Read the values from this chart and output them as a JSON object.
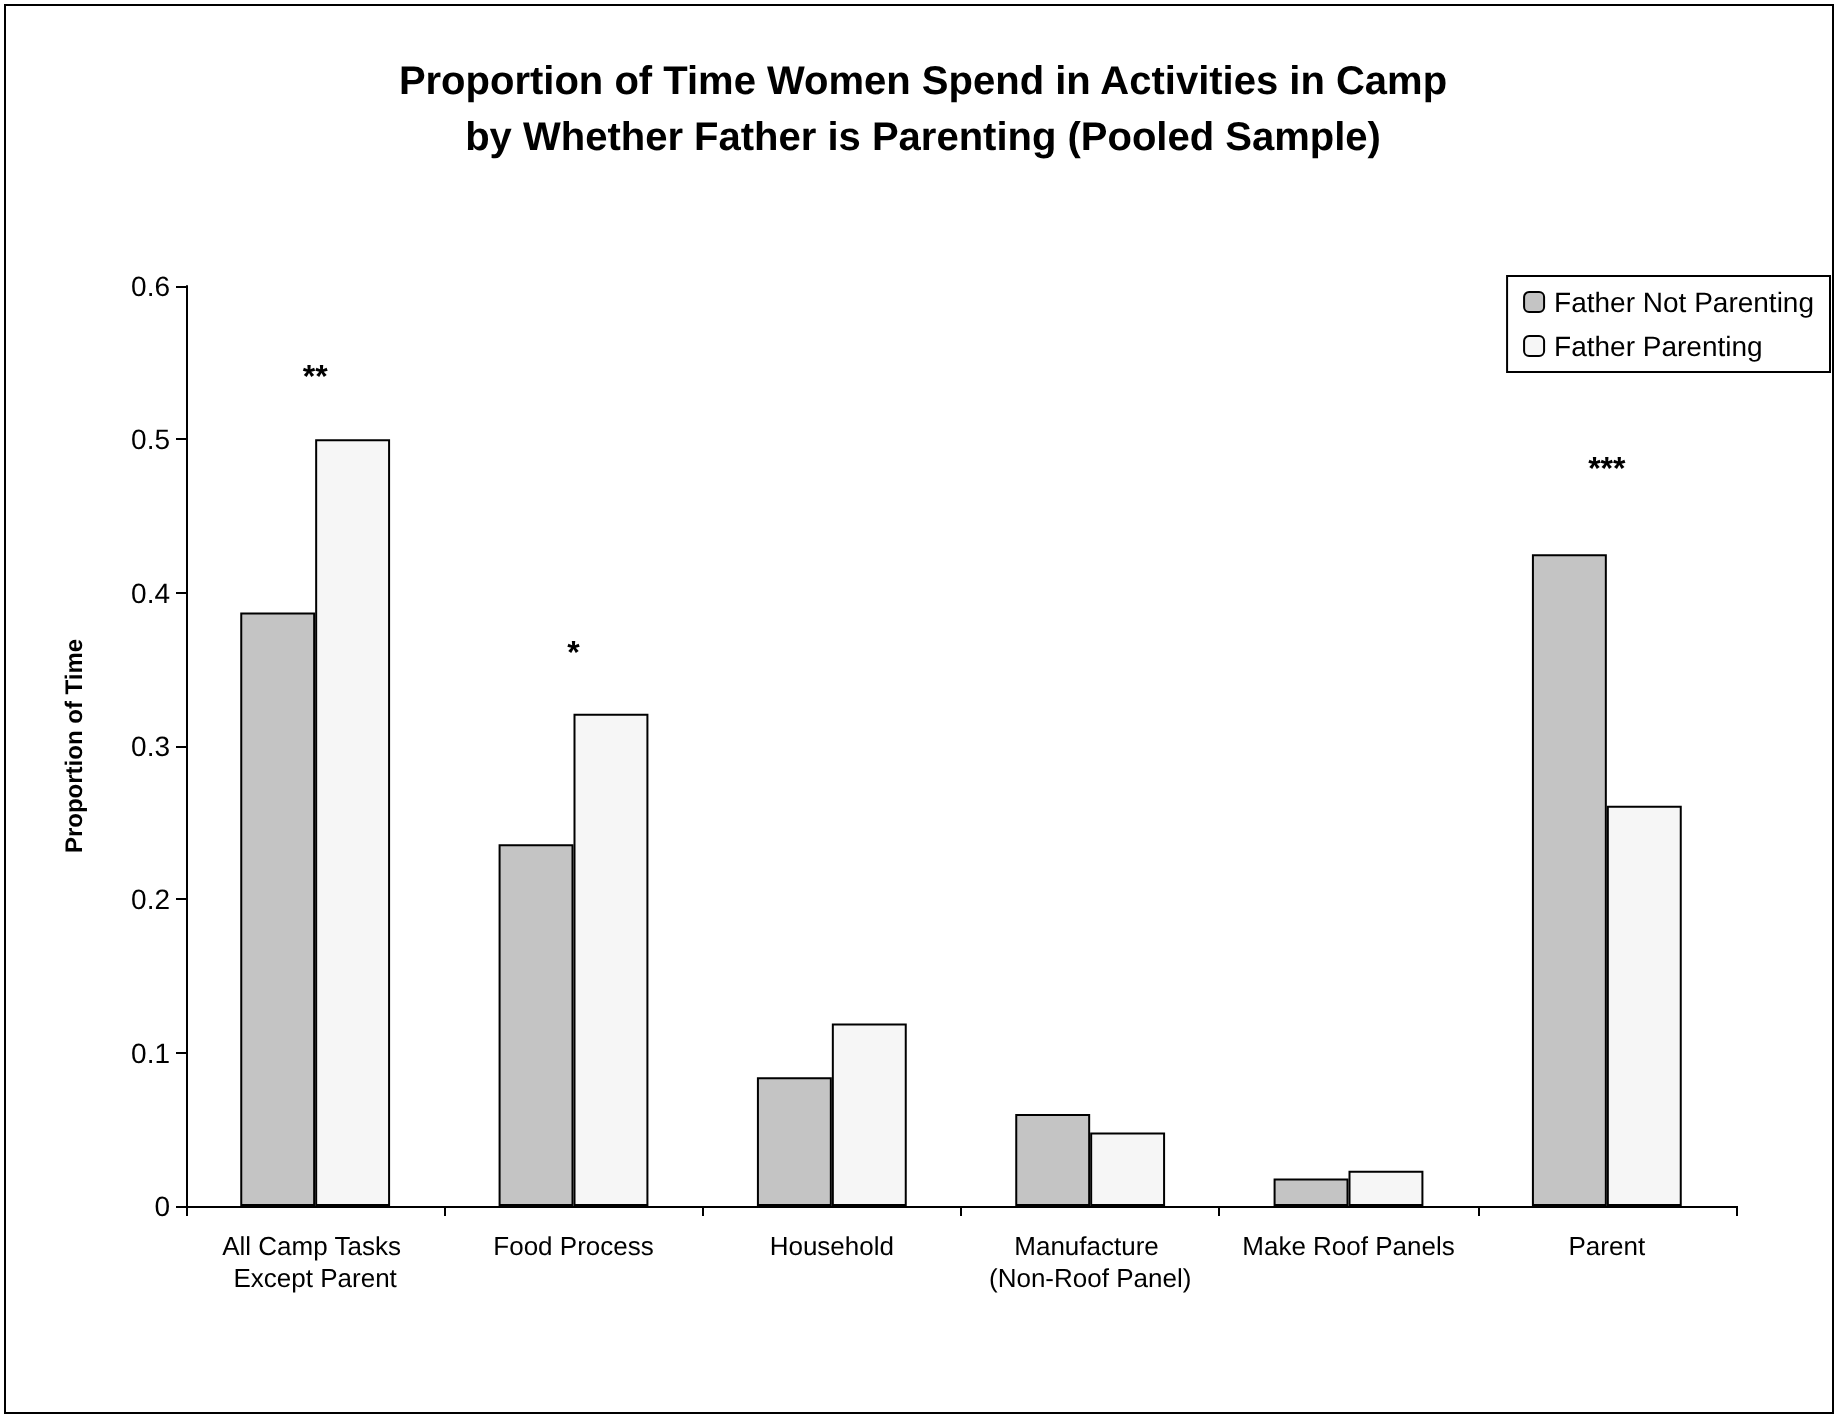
{
  "chart_data": {
    "type": "bar",
    "title": "Proportion of Time Women Spend in Activities in Camp\nby Whether Father is Parenting (Pooled Sample)",
    "ylabel": "Proportion of Time",
    "categories": [
      "All Camp Tasks Except Parent",
      "Food Process",
      "Household",
      "Manufacture (Non-Roof Panel)",
      "Make Roof Panels",
      "Parent"
    ],
    "series": [
      {
        "name": "Father Not Parenting",
        "color": "#c4c4c4",
        "values": [
          0.387,
          0.236,
          0.084,
          0.06,
          0.018,
          0.425
        ]
      },
      {
        "name": "Father Parenting",
        "color": "#f6f6f6",
        "values": [
          0.5,
          0.321,
          0.119,
          0.048,
          0.023,
          0.261
        ]
      }
    ],
    "ylim": [
      0,
      0.6
    ],
    "yticks": [
      0,
      0.1,
      0.2,
      0.3,
      0.4,
      0.5,
      0.6
    ],
    "grid": false,
    "legend": "top right",
    "annotations": [
      "**",
      "*",
      "***"
    ]
  }
}
